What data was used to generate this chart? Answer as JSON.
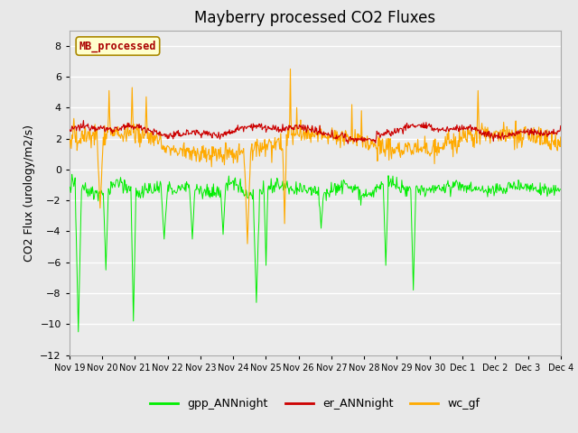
{
  "title": "Mayberry processed CO2 Fluxes",
  "ylabel": "CO2 Flux (urology/m2/s)",
  "ylim": [
    -12,
    9
  ],
  "yticks": [
    -12,
    -10,
    -8,
    -6,
    -4,
    -2,
    0,
    2,
    4,
    6,
    8
  ],
  "fig_bg_color": "#e8e8e8",
  "plot_bg_color": "#ebebeb",
  "grid_color": "#ffffff",
  "legend_entries": [
    "gpp_ANNnight",
    "er_ANNnight",
    "wc_gf"
  ],
  "legend_colors": [
    "#00ee00",
    "#cc0000",
    "#ffaa00"
  ],
  "watermark_text": "MB_processed",
  "watermark_color": "#aa0000",
  "watermark_bg": "#ffffcc",
  "watermark_edge": "#aa8800",
  "xtick_labels": [
    "Nov 19",
    "Nov 20",
    "Nov 21",
    "Nov 22",
    "Nov 23",
    "Nov 24",
    "Nov 25",
    "Nov 26",
    "Nov 27",
    "Nov 28",
    "Nov 29",
    "Nov 30",
    "Dec 1",
    "Dec 2",
    "Dec 3",
    "Dec 4"
  ],
  "gpp_color": "#00ee00",
  "er_color": "#cc0000",
  "wc_color": "#ffaa00",
  "title_fontsize": 12,
  "axis_fontsize": 9,
  "tick_fontsize": 8
}
